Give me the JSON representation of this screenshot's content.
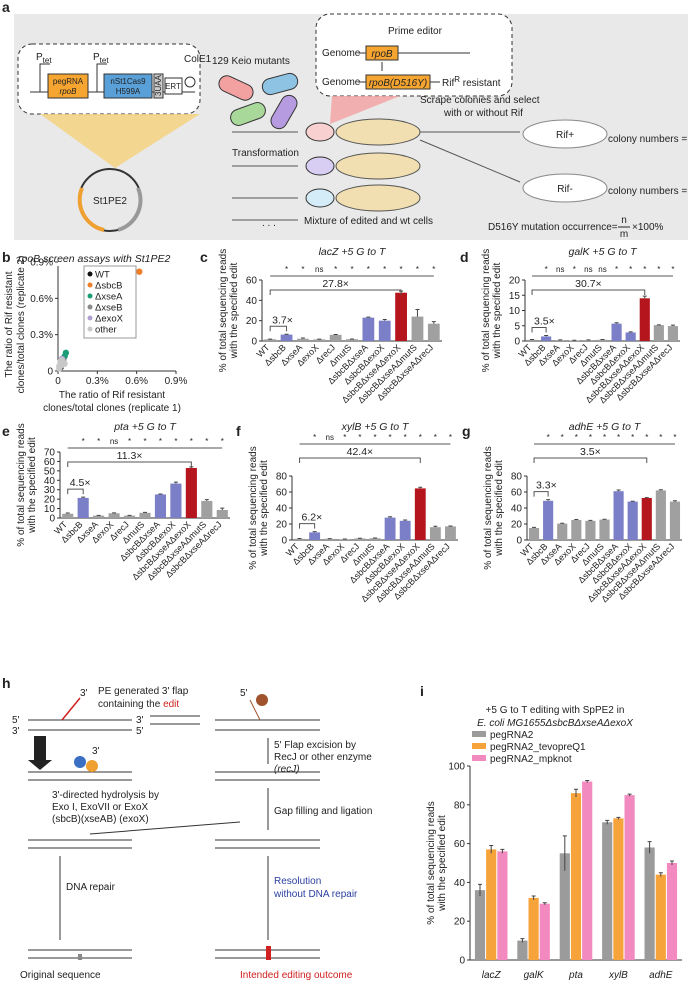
{
  "panel_labels": {
    "a": "a",
    "b": "b",
    "c": "c",
    "d": "d",
    "e": "e",
    "f": "f",
    "g": "g",
    "h": "h",
    "i": "i"
  },
  "panel_a": {
    "p1": "P",
    "p1_sub": "tet",
    "p2": "P",
    "p2_sub": "tet",
    "pegrna": "pegRNA",
    "pegrna_target": "rpoB",
    "cas9": "nSt1Cas9",
    "cas9_mut": "H599A",
    "uaa": "3UAA",
    "ert": "ERT",
    "cole1": "ColE1",
    "plasmid": "St1PE2",
    "keio": "129 Keio mutants",
    "prime_editor": "Prime editor",
    "genome1": "Genome",
    "gene1": "rpoB",
    "genome2": "Genome",
    "gene2": "rpoB(D516Y)",
    "rif": "Rif",
    "rif_sup": "R",
    "resistant": " resistant",
    "transformation": "Transformation",
    "scrape1": "Scrape colonies and select",
    "scrape2": "with or without Rif",
    "rif_plus": "Rif+",
    "rif_minus": "Rif-",
    "count_n": "colony numbers = n",
    "count_m": "colony numbers = m",
    "ellipsis": ". . .",
    "mixture": "Mixture of edited and wt cells",
    "occurrence": "D516Y mutation occurrence=",
    "num": "n",
    "den": "m",
    "times": "×100%"
  },
  "chart_data": [
    {
      "type": "scatter",
      "title": "rpoB screen assays with St1PE2",
      "xlabel": [
        "The ratio of Rif resistant",
        "clones/total clones (replicate 1)"
      ],
      "ylabel": [
        "The ratio of Rif resistant",
        "clones/total clones (replicate 2)"
      ],
      "xlim": [
        0,
        0.9
      ],
      "ylim": [
        0,
        0.9
      ],
      "xticks": [
        0,
        {
          "value": 0.3,
          "label": "0.3%"
        },
        {
          "value": 0.6,
          "label": "0.6%"
        },
        {
          "value": 0.9,
          "label": "0.9%"
        }
      ],
      "yticks": [
        0,
        {
          "value": 0.3,
          "label": "0.3%"
        },
        {
          "value": 0.6,
          "label": "0.6%"
        },
        {
          "value": 0.9,
          "label": "0.9%"
        }
      ],
      "legend": "upper left",
      "series": [
        {
          "name": "WT",
          "color": "#111111",
          "x": [
            0.02
          ],
          "y": [
            0.03
          ]
        },
        {
          "name": "ΔsbcB",
          "color": "#f07f2a",
          "x": [
            0.62
          ],
          "y": [
            0.82
          ]
        },
        {
          "name": "ΔxseA",
          "color": "#1a9e77",
          "x": [
            0.05,
            0.06
          ],
          "y": [
            0.12,
            0.15
          ]
        },
        {
          "name": "ΔxseB",
          "color": "#8a8a8a",
          "x": [
            0.04
          ],
          "y": [
            0.09
          ]
        },
        {
          "name": "ΔexoX",
          "color": "#b0a0d0",
          "x": [
            0.03
          ],
          "y": [
            0.1
          ]
        },
        {
          "name": "other",
          "color": "#c8c8c8",
          "x": [
            0.01,
            0.02,
            0.03,
            0.04,
            0.02,
            0.03,
            0.05,
            0.01
          ],
          "y": [
            0.04,
            0.06,
            0.05,
            0.07,
            0.08,
            0.09,
            0.06,
            0.02
          ]
        }
      ]
    },
    {
      "type": "bar",
      "title": "lacZ +5 G to T",
      "ylabel": [
        "% of total sequencing reads",
        "with the specified edit"
      ],
      "categories": [
        "WT",
        "ΔsbcB",
        "ΔxseA",
        "ΔexoX",
        "ΔrecJ",
        "ΔmutS",
        "ΔsbcBΔxseA",
        "ΔsbcBΔexoX",
        "ΔsbcBΔxseAΔexoX",
        "ΔsbcBΔxseAΔmutS",
        "ΔsbcBΔxseAΔrecJ"
      ],
      "values": [
        1.7,
        6.3,
        2.2,
        1.6,
        6.1,
        1.8,
        23.0,
        20.0,
        47.5,
        24.0,
        17.0
      ],
      "errors": [
        0.2,
        0.3,
        0.8,
        0.3,
        0.3,
        0.2,
        0.5,
        1.2,
        1.5,
        7.0,
        2.0
      ],
      "colors": [
        "#a0a0a0",
        "#7b7fc7",
        "#a0a0a0",
        "#a0a0a0",
        "#a0a0a0",
        "#a0a0a0",
        "#7b7fc7",
        "#7b7fc7",
        "#b5161d",
        "#a0a0a0",
        "#a0a0a0"
      ],
      "ylim": [
        0,
        60
      ],
      "yticks": [
        0,
        20,
        40,
        60
      ],
      "significance": [
        "*",
        "*",
        "ns",
        "*",
        "*",
        "*",
        "*",
        "*",
        "*",
        "*"
      ],
      "fold_changes": [
        "3.7×",
        "27.8×"
      ]
    },
    {
      "type": "bar",
      "title": "galK +5 G to T",
      "ylabel": [
        "% of total sequencing reads",
        "with the specified edit"
      ],
      "categories": [
        "WT",
        "ΔsbcB",
        "ΔxseA",
        "ΔexoX",
        "ΔrecJ",
        "ΔmutS",
        "ΔsbcBΔxseA",
        "ΔsbcBΔexoX",
        "ΔsbcBΔxseAΔexoX",
        "ΔsbcBΔxseAΔmutS",
        "ΔsbcBΔxseAΔrecJ"
      ],
      "values": [
        0.4,
        1.5,
        0.3,
        0.2,
        0.3,
        0.4,
        5.7,
        2.8,
        14.0,
        5.2,
        4.9
      ],
      "errors": [
        0.1,
        0.3,
        0.05,
        0.05,
        0.05,
        0.1,
        0.3,
        0.2,
        0.7,
        0.1,
        0.3
      ],
      "colors": [
        "#a0a0a0",
        "#7b7fc7",
        "#a0a0a0",
        "#a0a0a0",
        "#a0a0a0",
        "#a0a0a0",
        "#7b7fc7",
        "#7b7fc7",
        "#b5161d",
        "#a0a0a0",
        "#a0a0a0"
      ],
      "ylim": [
        0,
        20
      ],
      "yticks": [
        0,
        5,
        10,
        15,
        20
      ],
      "significance": [
        "*",
        "ns",
        "*",
        "ns",
        "ns",
        "*",
        "*",
        "*",
        "*",
        "*"
      ],
      "fold_changes": [
        "3.5×",
        "30.7×"
      ]
    },
    {
      "type": "bar",
      "title": "pta +5 G to T",
      "ylabel": [
        "% of total sequencing reads",
        "with the specified edit"
      ],
      "categories": [
        "WT",
        "ΔsbcB",
        "ΔxseA",
        "ΔexoX",
        "ΔrecJ",
        "ΔmutS",
        "ΔsbcBΔxseA",
        "ΔsbcBΔexoX",
        "ΔsbcBΔxseAΔexoX",
        "ΔsbcBΔxseAΔmutS",
        "ΔsbcBΔxseAΔrecJ"
      ],
      "values": [
        4.5,
        21.3,
        2.5,
        5.0,
        2.5,
        5.5,
        25.0,
        36.5,
        53.0,
        18.0,
        8.5
      ],
      "errors": [
        0.8,
        0.8,
        0.3,
        0.5,
        0.3,
        0.4,
        0.5,
        1.5,
        1.2,
        1.5,
        2.0
      ],
      "colors": [
        "#a0a0a0",
        "#7b7fc7",
        "#a0a0a0",
        "#a0a0a0",
        "#a0a0a0",
        "#a0a0a0",
        "#7b7fc7",
        "#7b7fc7",
        "#b5161d",
        "#a0a0a0",
        "#a0a0a0"
      ],
      "ylim": [
        0,
        70
      ],
      "yticks": [
        0,
        10,
        20,
        30,
        40,
        50,
        60,
        70
      ],
      "significance": [
        "*",
        "*",
        "ns",
        "*",
        "*",
        "*",
        "*",
        "*",
        "*",
        "*"
      ],
      "fold_changes": [
        "4.5×",
        "11.3×"
      ]
    },
    {
      "type": "bar",
      "title": "xylB +5 G to T",
      "ylabel": [
        "% of total sequencing reads",
        "with the specified edit"
      ],
      "categories": [
        "WT",
        "ΔsbcB",
        "ΔxseA",
        "ΔexoX",
        "ΔrecJ",
        "ΔmutS",
        "ΔsbcBΔxseA",
        "ΔsbcBΔexoX",
        "ΔsbcBΔxseAΔexoX",
        "ΔsbcBΔxseAΔmutS",
        "ΔsbcBΔxseAΔrecJ"
      ],
      "values": [
        1.5,
        9.5,
        1.5,
        1.0,
        2.0,
        2.2,
        28.0,
        24.0,
        64.5,
        16.0,
        17.0
      ],
      "errors": [
        0.3,
        1.0,
        0.2,
        0.2,
        0.2,
        0.3,
        1.0,
        1.0,
        1.5,
        1.2,
        0.5
      ],
      "colors": [
        "#a0a0a0",
        "#7b7fc7",
        "#a0a0a0",
        "#a0a0a0",
        "#a0a0a0",
        "#a0a0a0",
        "#7b7fc7",
        "#7b7fc7",
        "#b5161d",
        "#a0a0a0",
        "#a0a0a0"
      ],
      "ylim": [
        0,
        80
      ],
      "yticks": [
        0,
        20,
        40,
        60,
        80
      ],
      "significance": [
        "*",
        "ns",
        "*",
        "*",
        "*",
        "*",
        "*",
        "*",
        "*",
        "*"
      ],
      "fold_changes": [
        "6.2×",
        "42.4×"
      ]
    },
    {
      "type": "bar",
      "title": "adhE +5 G to T",
      "ylabel": [
        "% of total sequencing reads",
        "with the specified edit"
      ],
      "categories": [
        "WT",
        "ΔsbcB",
        "ΔxseA",
        "ΔexoX",
        "ΔrecJ",
        "ΔmutS",
        "ΔsbcBΔxseA",
        "ΔsbcBΔexoX",
        "ΔsbcBΔxseAΔexoX",
        "ΔsbcBΔxseAΔmutS",
        "ΔsbcBΔxseAΔrecJ"
      ],
      "values": [
        15.0,
        49.0,
        20.5,
        25.0,
        24.0,
        25.5,
        61.0,
        48.0,
        52.5,
        62.0,
        48.0
      ],
      "errors": [
        0.8,
        1.5,
        0.5,
        0.7,
        0.5,
        0.5,
        1.5,
        0.5,
        0.5,
        0.8,
        1.0
      ],
      "colors": [
        "#a0a0a0",
        "#7b7fc7",
        "#a0a0a0",
        "#a0a0a0",
        "#a0a0a0",
        "#a0a0a0",
        "#7b7fc7",
        "#7b7fc7",
        "#b5161d",
        "#a0a0a0",
        "#a0a0a0"
      ],
      "ylim": [
        0,
        80
      ],
      "yticks": [
        0,
        20,
        40,
        60,
        80
      ],
      "significance": [
        "*",
        "*",
        "*",
        "*",
        "*",
        "*",
        "*",
        "*",
        "*",
        "*"
      ],
      "fold_changes": [
        "3.3×",
        "3.5×"
      ]
    },
    {
      "type": "grouped_bar",
      "title": [
        "+5 G to T editing with SpPE2 in",
        "E. coli MG1655ΔsbcBΔxseAΔexoX"
      ],
      "ylabel": [
        "% of total sequencing reads",
        "with the specified edit"
      ],
      "categories": [
        "lacZ",
        "galK",
        "pta",
        "xylB",
        "adhE"
      ],
      "ylim": [
        0,
        100
      ],
      "yticks": [
        0,
        20,
        40,
        60,
        80,
        100
      ],
      "legend": "upper left",
      "series": [
        {
          "name": "pegRNA2",
          "color": "#9b9b9b",
          "values": [
            36,
            10,
            55,
            71,
            58
          ],
          "errors": [
            3,
            1,
            9,
            1,
            3
          ]
        },
        {
          "name": "pegRNA2_tevopreQ1",
          "color": "#f7a33b",
          "values": [
            57,
            32,
            86,
            73,
            44
          ],
          "errors": [
            2,
            1,
            2,
            0.5,
            1
          ]
        },
        {
          "name": "pegRNA2_mpknot",
          "color": "#f28ac0",
          "values": [
            56,
            29,
            92,
            85,
            50
          ],
          "errors": [
            1,
            0.5,
            0.5,
            0.5,
            1
          ]
        }
      ]
    }
  ],
  "panel_h": {
    "flap1": "PE generated 3' flap",
    "flap2": "containing the ",
    "edit": "edit",
    "p3a": "3'",
    "p5a": "5'",
    "p3b": "3'",
    "p3c": "3'",
    "p5c": "5'",
    "p5d": "5'",
    "p3e": "3'",
    "recj1": "5' Flap excision by",
    "recj2": "RecJ or other enzyme",
    "recj3": "(recJ)",
    "hyd1": "3'-directed hydrolysis by",
    "hyd2": "Exo I, ExoVII or ExoX",
    "hyd3": "(sbcB)(xseAB) (exoX)",
    "gap": "Gap filling and ligation",
    "repair": "DNA repair",
    "res1": "Resolution",
    "res2": "without DNA repair",
    "original": "Original sequence",
    "intended": "Intended editing outcome"
  }
}
